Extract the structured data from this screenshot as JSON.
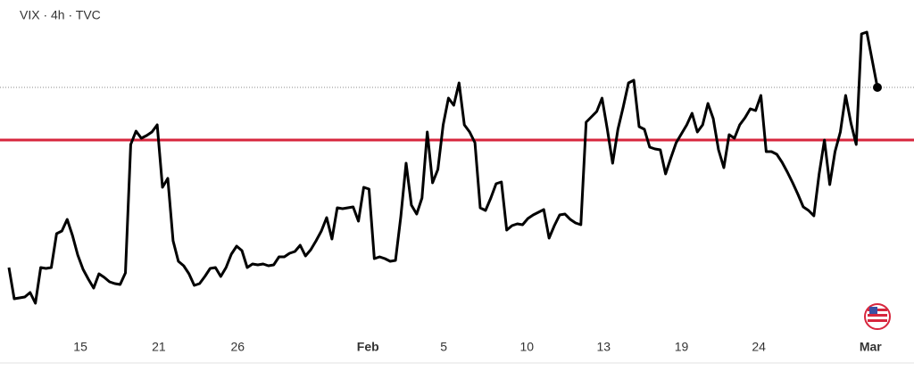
{
  "chart_data": {
    "type": "line",
    "title": "VIX · 4h · TVC",
    "series": [
      {
        "name": "VIX",
        "color": "#000000",
        "values": [
          80,
          45,
          46,
          47,
          52,
          40,
          80,
          79,
          80,
          118,
          121,
          134,
          116,
          94,
          78,
          67,
          57,
          73,
          69,
          64,
          62,
          61,
          74,
          218,
          233,
          225,
          228,
          232,
          240,
          170,
          180,
          110,
          87,
          82,
          73,
          60,
          62,
          70,
          79,
          80,
          70,
          80,
          95,
          104,
          99,
          80,
          84,
          83,
          84,
          82,
          83,
          92,
          92,
          96,
          98,
          105,
          93,
          100,
          110,
          121,
          136,
          112,
          147,
          146,
          147,
          148,
          132,
          170,
          168,
          90,
          92,
          90,
          87,
          88,
          137,
          197,
          150,
          140,
          158,
          232,
          175,
          190,
          240,
          270,
          262,
          287,
          240,
          232,
          220,
          147,
          144,
          158,
          174,
          176,
          122,
          127,
          129,
          128,
          135,
          139,
          142,
          145,
          113,
          127,
          139,
          140,
          134,
          130,
          128,
          243,
          249,
          255,
          270,
          235,
          197,
          235,
          260,
          287,
          290,
          238,
          235,
          215,
          213,
          212,
          185,
          203,
          220,
          230,
          240,
          253,
          232,
          240,
          264,
          247,
          212,
          192,
          229,
          225,
          240,
          248,
          258,
          256,
          273,
          210,
          210,
          207,
          198,
          187,
          175,
          162,
          148,
          144,
          138,
          185,
          223,
          173,
          210,
          232,
          273,
          242,
          218,
          342,
          344,
          313,
          282
        ]
      }
    ],
    "xlim": [
      0,
      164
    ],
    "xticks": [
      {
        "value": 13.5,
        "label": "15"
      },
      {
        "value": 28.3,
        "label": "21"
      },
      {
        "value": 43.2,
        "label": "26"
      },
      {
        "value": 67.8,
        "label": "Feb",
        "bold": true
      },
      {
        "value": 82.1,
        "label": "5"
      },
      {
        "value": 97.8,
        "label": "10"
      },
      {
        "value": 112.3,
        "label": "13"
      },
      {
        "value": 127,
        "label": "19"
      },
      {
        "value": 141.6,
        "label": "24"
      },
      {
        "value": 162.7,
        "label": "Mar",
        "bold": true
      }
    ],
    "ylim": [
      0,
      360
    ],
    "reference_line": {
      "value": 223,
      "color": "#d7263d"
    },
    "last_value_line": {
      "value": 282,
      "color": "#888888"
    }
  }
}
